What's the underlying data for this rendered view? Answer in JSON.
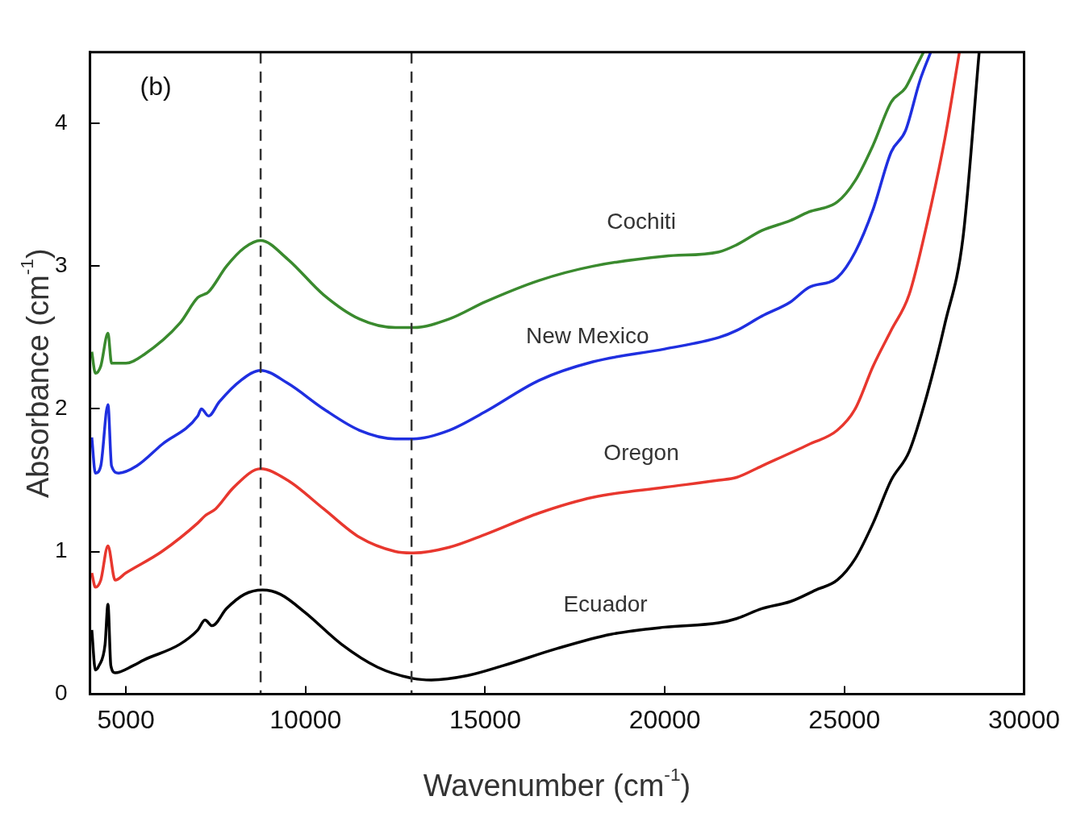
{
  "chart_data": {
    "type": "line",
    "xlabel": "Wavenumber (cm$^{-1}$)",
    "ylabel": "Absorbance (cm$^{-1}$)",
    "annotations": [
      "(b)"
    ],
    "xlim": [
      4000,
      30000
    ],
    "xticks": [
      5000,
      10000,
      15000,
      20000,
      25000,
      30000
    ],
    "ylim": [
      0,
      4.5
    ],
    "yticks": [
      0,
      1,
      2,
      3,
      4
    ],
    "grid": false,
    "legend": false,
    "marker": "none",
    "line_style": "solid",
    "ref_lines": [
      {
        "axis": "x",
        "value": 8750,
        "line_style": "dashed",
        "color": "#333333"
      },
      {
        "axis": "x",
        "value": 12950,
        "line_style": "dashed",
        "color": "#333333"
      }
    ],
    "series": [
      {
        "name": "Cochiti",
        "color": "#3a8a2e",
        "x": [
          4050,
          4150,
          4300,
          4500,
          4600,
          5000,
          5500,
          6500,
          7000,
          7300,
          7800,
          8300,
          8750,
          9500,
          10500,
          11500,
          12500,
          13000,
          14000,
          15000,
          16500,
          18000,
          20000,
          21500,
          22000,
          22700,
          23500,
          24000,
          24800,
          25300,
          25800,
          26300,
          26700,
          27000,
          27200
        ],
        "values": [
          2.4,
          2.25,
          2.3,
          2.53,
          2.32,
          2.32,
          2.38,
          2.6,
          2.78,
          2.82,
          3.0,
          3.13,
          3.18,
          3.05,
          2.8,
          2.63,
          2.57,
          2.57,
          2.63,
          2.75,
          2.9,
          3.0,
          3.07,
          3.1,
          3.15,
          3.25,
          3.32,
          3.38,
          3.45,
          3.6,
          3.85,
          4.15,
          4.25,
          4.4,
          4.5
        ]
      },
      {
        "name": "New Mexico",
        "color": "#1f2fe0",
        "x": [
          4050,
          4150,
          4300,
          4500,
          4600,
          4800,
          5300,
          6000,
          7000,
          7100,
          7300,
          7600,
          8200,
          8750,
          9500,
          10500,
          11500,
          12500,
          13000,
          14000,
          15000,
          16500,
          18000,
          20000,
          21500,
          22000,
          22700,
          23500,
          24000,
          24800,
          25300,
          25800,
          26300,
          26700,
          27100,
          27400
        ],
        "values": [
          1.8,
          1.55,
          1.6,
          2.03,
          1.6,
          1.55,
          1.6,
          1.75,
          1.95,
          2.0,
          1.95,
          2.05,
          2.2,
          2.27,
          2.18,
          2.0,
          1.85,
          1.79,
          1.79,
          1.85,
          1.98,
          2.2,
          2.33,
          2.42,
          2.5,
          2.55,
          2.65,
          2.75,
          2.85,
          2.92,
          3.1,
          3.4,
          3.8,
          3.95,
          4.3,
          4.5
        ]
      },
      {
        "name": "Oregon",
        "color": "#e8372e",
        "x": [
          4050,
          4150,
          4300,
          4500,
          4700,
          5000,
          6000,
          7000,
          7200,
          7500,
          8000,
          8750,
          9500,
          10500,
          11500,
          12500,
          13000,
          14000,
          15000,
          16500,
          18000,
          20000,
          21500,
          22000,
          22700,
          24000,
          24800,
          25300,
          25800,
          26300,
          26800,
          27300,
          27800,
          28200
        ],
        "values": [
          0.85,
          0.75,
          0.8,
          1.04,
          0.8,
          0.85,
          1.0,
          1.2,
          1.25,
          1.3,
          1.45,
          1.58,
          1.5,
          1.3,
          1.1,
          1.0,
          0.99,
          1.03,
          1.12,
          1.27,
          1.38,
          1.45,
          1.5,
          1.52,
          1.6,
          1.75,
          1.85,
          2.0,
          2.3,
          2.55,
          2.8,
          3.3,
          3.9,
          4.5
        ]
      },
      {
        "name": "Ecuador",
        "color": "#000000",
        "x": [
          4050,
          4150,
          4250,
          4420,
          4500,
          4580,
          4700,
          5200,
          5500,
          6500,
          7000,
          7200,
          7400,
          7800,
          8300,
          8800,
          9300,
          10000,
          11000,
          12000,
          13000,
          13500,
          14500,
          15500,
          17000,
          18500,
          20000,
          21500,
          22000,
          22700,
          23500,
          24200,
          24800,
          25300,
          25800,
          26300,
          26800,
          27300,
          27800,
          28300,
          28750
        ],
        "values": [
          0.45,
          0.17,
          0.2,
          0.35,
          0.63,
          0.2,
          0.15,
          0.2,
          0.24,
          0.35,
          0.45,
          0.52,
          0.48,
          0.6,
          0.7,
          0.73,
          0.7,
          0.57,
          0.35,
          0.19,
          0.11,
          0.1,
          0.13,
          0.2,
          0.32,
          0.42,
          0.47,
          0.5,
          0.53,
          0.6,
          0.65,
          0.73,
          0.8,
          0.95,
          1.2,
          1.5,
          1.7,
          2.1,
          2.6,
          3.2,
          4.5
        ]
      }
    ]
  }
}
